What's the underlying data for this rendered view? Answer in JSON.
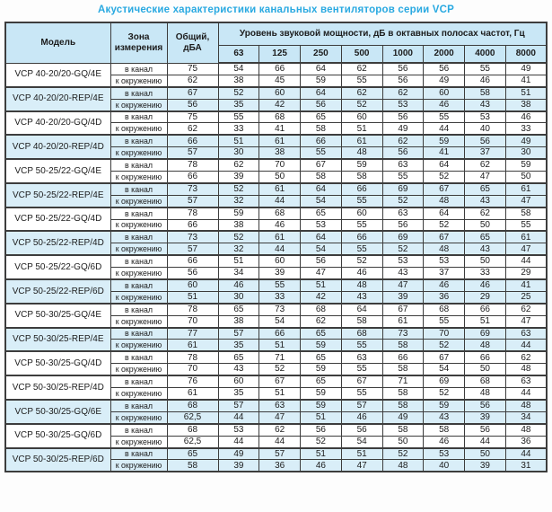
{
  "title": "Акустические характеристики канальных вентиляторов  серии VCP",
  "colors": {
    "title": "#29a9e1",
    "header_bg": "#c9e7f6",
    "row_shaded_bg": "#d9eef8",
    "border": "#3d3d3d",
    "text": "#1c1c1c"
  },
  "table": {
    "headers": {
      "model": "Модель",
      "zone": "Зона\nизмерения",
      "total": "Общий,\nдБА",
      "group": "Уровень звуковой мощности, дБ в октавных полосах частот, Гц",
      "frequencies": [
        "63",
        "125",
        "250",
        "500",
        "1000",
        "2000",
        "4000",
        "8000"
      ]
    },
    "models": [
      {
        "name": "VCP 40-20/20-GQ/4E",
        "shaded": false,
        "rows": [
          {
            "zone": "в канал",
            "total": "75",
            "levels": [
              54,
              66,
              64,
              62,
              56,
              56,
              55,
              49
            ]
          },
          {
            "zone": "к окружению",
            "total": "62",
            "levels": [
              38,
              45,
              59,
              55,
              56,
              49,
              46,
              41
            ]
          }
        ]
      },
      {
        "name": "VCP 40-20/20-REP/4E",
        "shaded": true,
        "rows": [
          {
            "zone": "в канал",
            "total": "67",
            "levels": [
              52,
              60,
              64,
              62,
              62,
              60,
              58,
              51
            ]
          },
          {
            "zone": "к окружению",
            "total": "56",
            "levels": [
              35,
              42,
              56,
              52,
              53,
              46,
              43,
              38
            ]
          }
        ]
      },
      {
        "name": "VCP 40-20/20-GQ/4D",
        "shaded": false,
        "rows": [
          {
            "zone": "в канал",
            "total": "75",
            "levels": [
              55,
              68,
              65,
              60,
              56,
              55,
              53,
              46
            ]
          },
          {
            "zone": "к окружению",
            "total": "62",
            "levels": [
              33,
              41,
              58,
              51,
              49,
              44,
              40,
              33
            ]
          }
        ]
      },
      {
        "name": "VCP 40-20/20-REP/4D",
        "shaded": true,
        "rows": [
          {
            "zone": "в канал",
            "total": "66",
            "levels": [
              51,
              61,
              66,
              61,
              62,
              59,
              56,
              49
            ]
          },
          {
            "zone": "к окружению",
            "total": "57",
            "levels": [
              30,
              38,
              55,
              48,
              56,
              41,
              37,
              30
            ]
          }
        ]
      },
      {
        "name": "VCP 50-25/22-GQ/4E",
        "shaded": false,
        "rows": [
          {
            "zone": "в канал",
            "total": "78",
            "levels": [
              62,
              70,
              67,
              59,
              63,
              64,
              62,
              59
            ]
          },
          {
            "zone": "к окружению",
            "total": "66",
            "levels": [
              39,
              50,
              58,
              58,
              55,
              52,
              47,
              50
            ]
          }
        ]
      },
      {
        "name": "VCP 50-25/22-REP/4E",
        "shaded": true,
        "rows": [
          {
            "zone": "в канал",
            "total": "73",
            "levels": [
              52,
              61,
              64,
              66,
              69,
              67,
              65,
              61
            ]
          },
          {
            "zone": "к окружению",
            "total": "57",
            "levels": [
              32,
              44,
              54,
              55,
              52,
              48,
              43,
              47
            ]
          }
        ]
      },
      {
        "name": "VCP 50-25/22-GQ/4D",
        "shaded": false,
        "rows": [
          {
            "zone": "в канал",
            "total": "78",
            "levels": [
              59,
              68,
              65,
              60,
              63,
              64,
              62,
              58
            ]
          },
          {
            "zone": "к окружению",
            "total": "66",
            "levels": [
              38,
              46,
              53,
              55,
              56,
              52,
              50,
              55
            ]
          }
        ]
      },
      {
        "name": "VCP 50-25/22-REP/4D",
        "shaded": true,
        "rows": [
          {
            "zone": "в канал",
            "total": "73",
            "levels": [
              52,
              61,
              64,
              66,
              69,
              67,
              65,
              61
            ]
          },
          {
            "zone": "к окружению",
            "total": "57",
            "levels": [
              32,
              44,
              54,
              55,
              52,
              48,
              43,
              47
            ]
          }
        ]
      },
      {
        "name": "VCP 50-25/22-GQ/6D",
        "shaded": false,
        "rows": [
          {
            "zone": "в канал",
            "total": "66",
            "levels": [
              51,
              60,
              56,
              52,
              53,
              53,
              50,
              44
            ]
          },
          {
            "zone": "к окружению",
            "total": "56",
            "levels": [
              34,
              39,
              47,
              46,
              43,
              37,
              33,
              29
            ]
          }
        ]
      },
      {
        "name": "VCP 50-25/22-REP/6D",
        "shaded": true,
        "rows": [
          {
            "zone": "в канал",
            "total": "60",
            "levels": [
              46,
              55,
              51,
              48,
              47,
              46,
              46,
              41
            ]
          },
          {
            "zone": "к окружению",
            "total": "51",
            "levels": [
              30,
              33,
              42,
              43,
              39,
              36,
              29,
              25
            ]
          }
        ]
      },
      {
        "name": "VCP 50-30/25-GQ/4E",
        "shaded": false,
        "rows": [
          {
            "zone": "в канал",
            "total": "78",
            "levels": [
              65,
              73,
              68,
              64,
              67,
              68,
              66,
              62
            ]
          },
          {
            "zone": "к окружению",
            "total": "70",
            "levels": [
              38,
              54,
              62,
              58,
              61,
              55,
              51,
              47
            ]
          }
        ]
      },
      {
        "name": "VCP 50-30/25-REP/4E",
        "shaded": true,
        "rows": [
          {
            "zone": "в канал",
            "total": "77",
            "levels": [
              57,
              66,
              65,
              68,
              73,
              70,
              69,
              63
            ]
          },
          {
            "zone": "к окружению",
            "total": "61",
            "levels": [
              35,
              51,
              59,
              55,
              58,
              52,
              48,
              44
            ]
          }
        ]
      },
      {
        "name": "VCP 50-30/25-GQ/4D",
        "shaded": false,
        "rows": [
          {
            "zone": "в канал",
            "total": "78",
            "levels": [
              65,
              71,
              65,
              63,
              66,
              67,
              66,
              62
            ]
          },
          {
            "zone": "к окружению",
            "total": "70",
            "levels": [
              43,
              52,
              59,
              55,
              58,
              54,
              50,
              48
            ]
          }
        ]
      },
      {
        "name": "VCP 50-30/25-REP/4D",
        "shaded": false,
        "rows": [
          {
            "zone": "в канал",
            "total": "76",
            "levels": [
              60,
              67,
              65,
              67,
              71,
              69,
              68,
              63
            ]
          },
          {
            "zone": "к окружению",
            "total": "61",
            "levels": [
              35,
              51,
              59,
              55,
              58,
              52,
              48,
              44
            ]
          }
        ]
      },
      {
        "name": "VCP 50-30/25-GQ/6E",
        "shaded": true,
        "rows": [
          {
            "zone": "в канал",
            "total": "68",
            "levels": [
              57,
              63,
              59,
              57,
              58,
              59,
              56,
              48
            ]
          },
          {
            "zone": "к окружению",
            "total": "62,5",
            "levels": [
              44,
              47,
              51,
              46,
              49,
              43,
              39,
              34
            ]
          }
        ]
      },
      {
        "name": "VCP 50-30/25-GQ/6D",
        "shaded": false,
        "rows": [
          {
            "zone": "в канал",
            "total": "68",
            "levels": [
              53,
              62,
              56,
              56,
              58,
              58,
              56,
              48
            ]
          },
          {
            "zone": "к окружению",
            "total": "62,5",
            "levels": [
              44,
              44,
              52,
              54,
              50,
              46,
              44,
              36
            ]
          }
        ]
      },
      {
        "name": "VCP 50-30/25-REP/6D",
        "shaded": true,
        "rows": [
          {
            "zone": "в канал",
            "total": "65",
            "levels": [
              49,
              57,
              51,
              51,
              52,
              53,
              50,
              44
            ]
          },
          {
            "zone": "к окружению",
            "total": "58",
            "levels": [
              39,
              36,
              46,
              47,
              48,
              40,
              39,
              31
            ]
          }
        ]
      }
    ]
  }
}
